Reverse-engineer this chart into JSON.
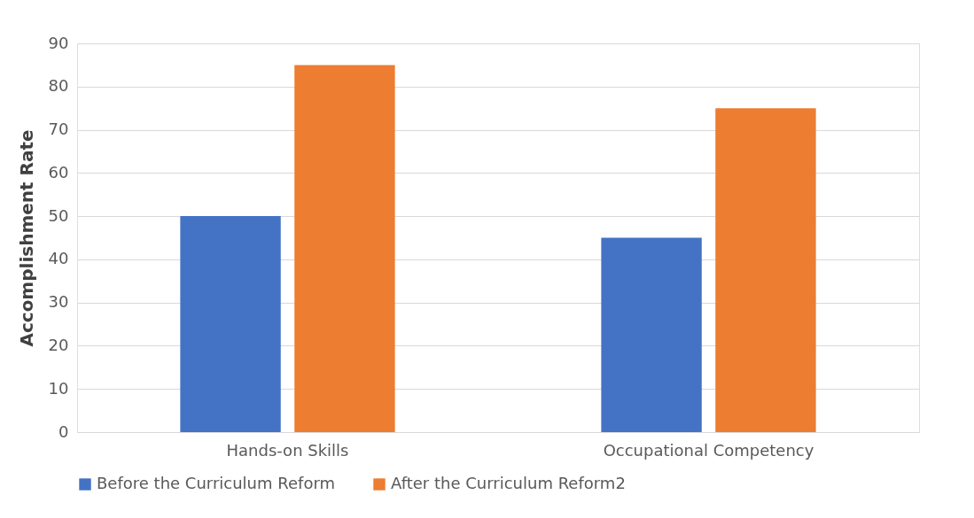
{
  "chart_data": {
    "type": "bar",
    "ylabel": "Accomplishment Rate",
    "categories": [
      "Hands-on Skills",
      "Occupational Competency"
    ],
    "series": [
      {
        "name": "Before the Curriculum Reform",
        "color": "#4472c4",
        "values": [
          50,
          45
        ]
      },
      {
        "name": "After the Curriculum Reform2",
        "color": "#ed7d31",
        "values": [
          85,
          75
        ]
      }
    ],
    "ylim": [
      0,
      90
    ],
    "yticks": [
      0,
      10,
      20,
      30,
      40,
      50,
      60,
      70,
      80,
      90
    ],
    "grid": "y",
    "legend": "bottom"
  }
}
